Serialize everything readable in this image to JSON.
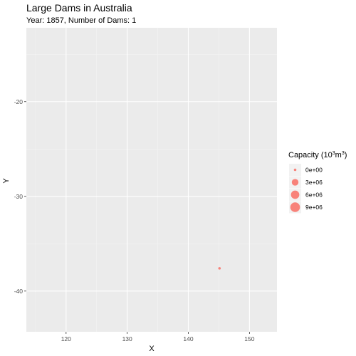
{
  "chart_data": {
    "type": "scatter",
    "title": "Large Dams in Australia",
    "subtitle": "Year: 1857,  Number of Dams: 1",
    "xlabel": "X",
    "ylabel": "Y",
    "xlim": [
      113.5,
      154.5
    ],
    "ylim": [
      -44.3,
      -12.2
    ],
    "x_ticks": [
      120,
      130,
      140,
      150
    ],
    "y_ticks": [
      -20,
      -30,
      -40
    ],
    "grid": true,
    "points": [
      {
        "x": 145.1,
        "y": -37.6,
        "capacity": 0
      }
    ],
    "point_color": "#f8766d",
    "legend": {
      "position": "right",
      "title_prefix": "Capacity (10",
      "title_sup": "3",
      "title_mid": "m",
      "title_sup2": "3",
      "title_suffix": ")",
      "entries": [
        {
          "label": "0e+00",
          "value": 0
        },
        {
          "label": "3e+06",
          "value": 3000000
        },
        {
          "label": "6e+06",
          "value": 6000000
        },
        {
          "label": "9e+06",
          "value": 9000000
        }
      ]
    }
  }
}
